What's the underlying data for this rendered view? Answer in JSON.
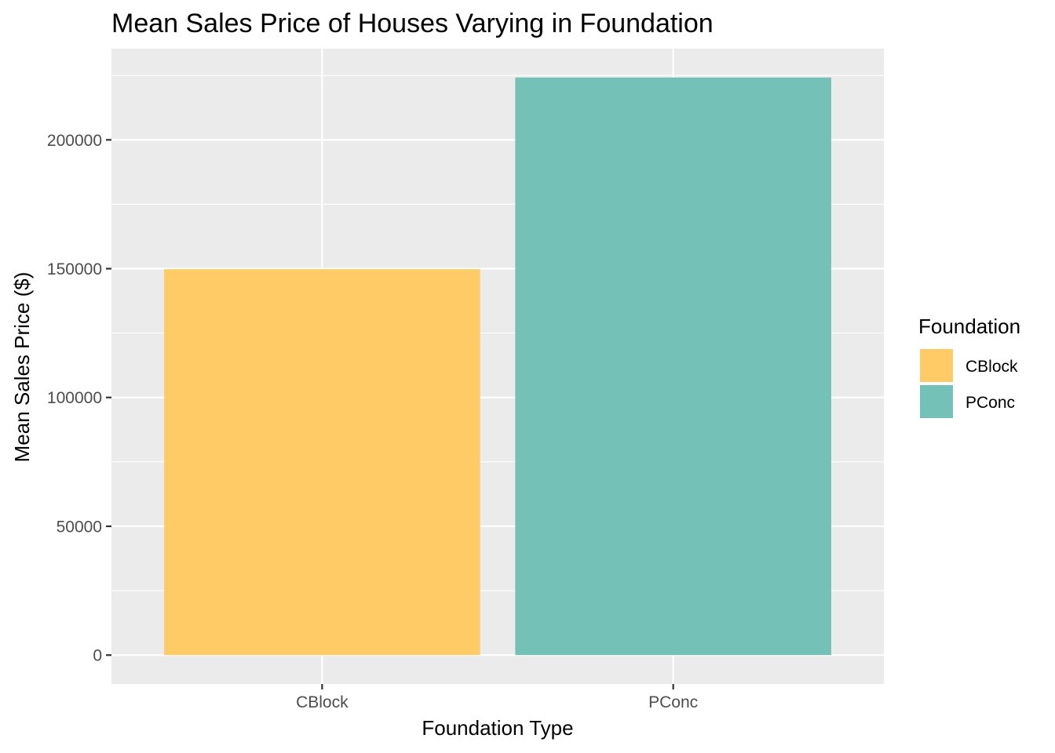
{
  "chart_data": {
    "type": "bar",
    "title": "Mean Sales Price of Houses Varying in Foundation",
    "xlabel": "Foundation Type",
    "ylabel": "Mean Sales Price ($)",
    "categories": [
      "CBlock",
      "PConc"
    ],
    "values": [
      149806,
      224200
    ],
    "colors": [
      "#FECB66",
      "#74C1B8"
    ],
    "ylim": [
      -11210,
      235410
    ],
    "yticks": [
      0,
      50000,
      100000,
      150000,
      200000
    ],
    "ytick_labels": [
      "0",
      "50000",
      "100000",
      "150000",
      "200000"
    ],
    "grid": true,
    "legend": {
      "title": "Foundation",
      "position": "right",
      "entries": [
        "CBlock",
        "PConc"
      ]
    },
    "theme": {
      "panel_background": "#EBEBEB",
      "grid_color": "#FFFFFF",
      "tick_color": "#333333"
    }
  }
}
